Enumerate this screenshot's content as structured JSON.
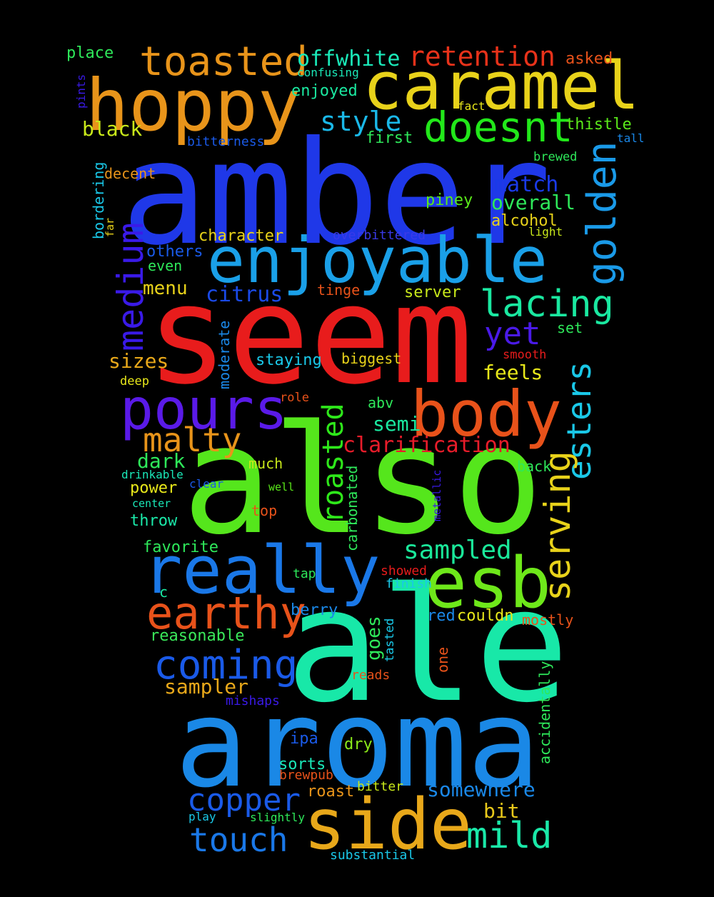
{
  "words": [
    {
      "text": "amber",
      "color": "#1f38e8"
    },
    {
      "text": "seem",
      "color": "#e81c1c"
    },
    {
      "text": "also",
      "color": "#55e61c"
    },
    {
      "text": "ale",
      "color": "#18e8a8"
    },
    {
      "text": "aroma",
      "color": "#1a88e6"
    },
    {
      "text": "caramel",
      "color": "#e8d21a"
    },
    {
      "text": "hoppy",
      "color": "#e8941a"
    },
    {
      "text": "enjoyable",
      "color": "#1aa0e8"
    },
    {
      "text": "side",
      "color": "#e8a81a"
    },
    {
      "text": "really",
      "color": "#1a78e8"
    },
    {
      "text": "esb",
      "color": "#6ee81a"
    },
    {
      "text": "body",
      "color": "#e8521a"
    },
    {
      "text": "pours",
      "color": "#5a1ae8"
    },
    {
      "text": "earthy",
      "color": "#e8521a"
    },
    {
      "text": "coming",
      "color": "#1a5ae8"
    },
    {
      "text": "toasted",
      "color": "#e8941a"
    },
    {
      "text": "doesnt",
      "color": "#22e81a"
    },
    {
      "text": "golden",
      "color": "#1a9ae8"
    },
    {
      "text": "lacing",
      "color": "#1ae8a0"
    },
    {
      "text": "malty",
      "color": "#e8941a"
    },
    {
      "text": "medium",
      "color": "#3a1ae8"
    },
    {
      "text": "esters",
      "color": "#1ac8e8"
    },
    {
      "text": "serving",
      "color": "#e8d21a"
    },
    {
      "text": "roasted",
      "color": "#2ee81a"
    },
    {
      "text": "copper",
      "color": "#1a5ae8"
    },
    {
      "text": "touch",
      "color": "#1a78e8"
    },
    {
      "text": "mild",
      "color": "#1ae8a8"
    },
    {
      "text": "retention",
      "color": "#e8321a"
    },
    {
      "text": "offwhite",
      "color": "#1ae8b8"
    },
    {
      "text": "style",
      "color": "#1ab8e8"
    },
    {
      "text": "clarification",
      "color": "#e81c2a"
    },
    {
      "text": "sampled",
      "color": "#1ae89a"
    },
    {
      "text": "yet",
      "color": "#4a1ae8"
    },
    {
      "text": "match",
      "color": "#1a3ae8"
    },
    {
      "text": "overall",
      "color": "#2ee85a"
    },
    {
      "text": "citrus",
      "color": "#1a4ae8"
    },
    {
      "text": "somewhere",
      "color": "#1a88e8"
    },
    {
      "text": "black",
      "color": "#c8e81a"
    },
    {
      "text": "sampler",
      "color": "#e8a81a"
    },
    {
      "text": "goes",
      "color": "#2ee85a"
    },
    {
      "text": "sizes",
      "color": "#e8a81a"
    },
    {
      "text": "menu",
      "color": "#e8d21a"
    },
    {
      "text": "feels",
      "color": "#e8e81a"
    },
    {
      "text": "semi",
      "color": "#1ae8a0"
    },
    {
      "text": "dark",
      "color": "#2ee85a"
    },
    {
      "text": "bit",
      "color": "#e8c81a"
    },
    {
      "text": "alcohol",
      "color": "#e8d21a"
    },
    {
      "text": "character",
      "color": "#e8d21a"
    },
    {
      "text": "moderate",
      "color": "#1a88e8"
    },
    {
      "text": "thistle",
      "color": "#5ae81a"
    },
    {
      "text": "piney",
      "color": "#5ae81a"
    },
    {
      "text": "others",
      "color": "#1a5ae8"
    },
    {
      "text": "reasonable",
      "color": "#3ae85a"
    },
    {
      "text": "favorite",
      "color": "#2ee85a"
    },
    {
      "text": "throw",
      "color": "#1ae8a8"
    },
    {
      "text": "power",
      "color": "#e8e81a"
    },
    {
      "text": "roast",
      "color": "#e8941a"
    },
    {
      "text": "carbonated",
      "color": "#2ee85a"
    },
    {
      "text": "enjoyed",
      "color": "#1ae8a0"
    },
    {
      "text": "first",
      "color": "#2ee85a"
    },
    {
      "text": "server",
      "color": "#c8e81a"
    },
    {
      "text": "staying",
      "color": "#1ac8e8"
    },
    {
      "text": "couldn",
      "color": "#e8e81a"
    },
    {
      "text": "berry",
      "color": "#1a88e8"
    },
    {
      "text": "sorts",
      "color": "#1ae8b8"
    },
    {
      "text": "dry",
      "color": "#8ae81a"
    },
    {
      "text": "ipa",
      "color": "#1a5ae8"
    },
    {
      "text": "accidentally",
      "color": "#2ee85a"
    },
    {
      "text": "bordering",
      "color": "#1ac8e8"
    },
    {
      "text": "place",
      "color": "#2ee85a"
    },
    {
      "text": "asked",
      "color": "#e8521a"
    },
    {
      "text": "decent",
      "color": "#e8941a"
    },
    {
      "text": "tinge",
      "color": "#e8521a"
    },
    {
      "text": "even",
      "color": "#2ee85a"
    },
    {
      "text": "biggest",
      "color": "#e8d21a"
    },
    {
      "text": "abv",
      "color": "#2ee85a"
    },
    {
      "text": "much",
      "color": "#c8e81a"
    },
    {
      "text": "back",
      "color": "#2ee85a"
    },
    {
      "text": "set",
      "color": "#2ee85a"
    },
    {
      "text": "red",
      "color": "#1a88e8"
    },
    {
      "text": "mostly",
      "color": "#e8521a"
    },
    {
      "text": "one",
      "color": "#e8521a"
    },
    {
      "text": "tasted",
      "color": "#1ac8e8"
    },
    {
      "text": "top",
      "color": "#e8521a"
    },
    {
      "text": "bitter",
      "color": "#c8e81a"
    },
    {
      "text": "brewpub",
      "color": "#e8521a"
    },
    {
      "text": "substantial",
      "color": "#1ac8e8"
    },
    {
      "text": "play",
      "color": "#1ac8e8"
    },
    {
      "text": "slightly",
      "color": "#2ee85a"
    },
    {
      "text": "reads",
      "color": "#e8521a"
    },
    {
      "text": "mishaps",
      "color": "#3a1ae8"
    },
    {
      "text": "tap",
      "color": "#2ee85a"
    },
    {
      "text": "showed",
      "color": "#e81c1c"
    },
    {
      "text": "finish",
      "color": "#1ac8e8"
    },
    {
      "text": "c",
      "color": "#1ae8a0"
    },
    {
      "text": "drinkable",
      "color": "#1ae8b8"
    },
    {
      "text": "clear",
      "color": "#1a5ae8"
    },
    {
      "text": "well",
      "color": "#5ae81a"
    },
    {
      "text": "center",
      "color": "#1ae8b8"
    },
    {
      "text": "metallic",
      "color": "#3a1ae8"
    },
    {
      "text": "role",
      "color": "#e8521a"
    },
    {
      "text": "deep",
      "color": "#e8e81a"
    },
    {
      "text": "smooth",
      "color": "#e81c1c"
    },
    {
      "text": "overbittered",
      "color": "#3a3ae8"
    },
    {
      "text": "light",
      "color": "#c8e81a"
    },
    {
      "text": "far",
      "color": "#e8d21a"
    },
    {
      "text": "bitterness",
      "color": "#1a5ae8"
    },
    {
      "text": "brewed",
      "color": "#2ee85a"
    },
    {
      "text": "tall",
      "color": "#1a88e8"
    },
    {
      "text": "fact",
      "color": "#e8e81a"
    },
    {
      "text": "confusing",
      "color": "#1ae8b8"
    },
    {
      "text": "pints",
      "color": "#3a1ae8"
    }
  ]
}
